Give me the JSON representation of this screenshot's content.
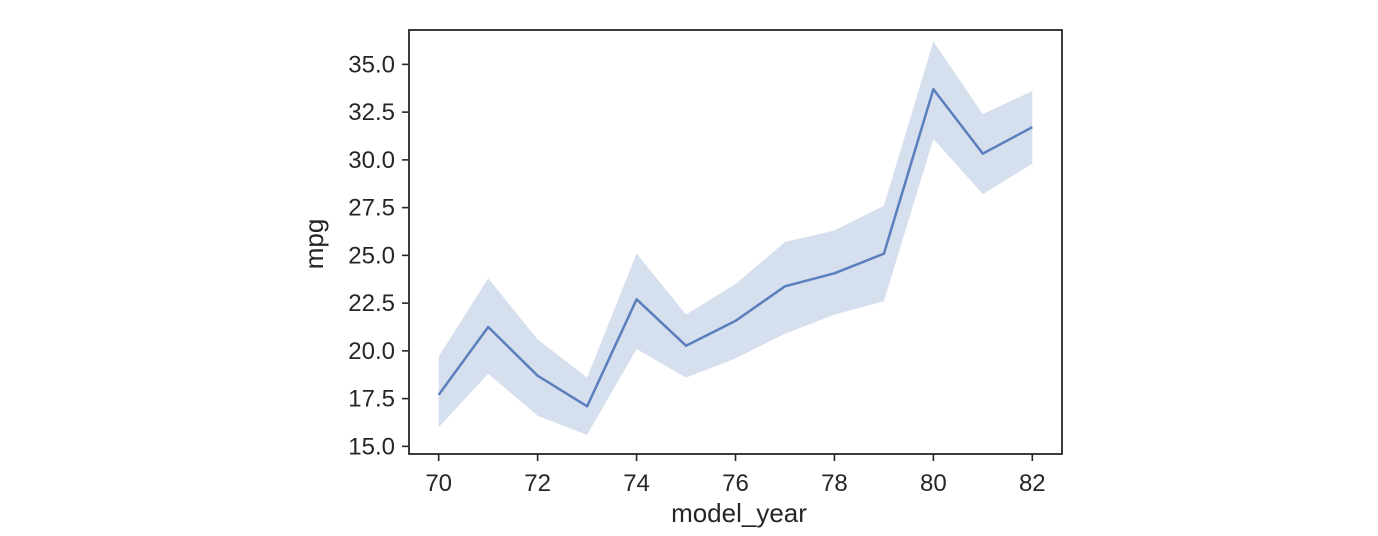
{
  "chart_data": {
    "type": "line",
    "xlabel": "model_year",
    "ylabel": "mpg",
    "xlim": [
      69.4,
      82.6
    ],
    "ylim": [
      14.6,
      36.8
    ],
    "x_ticks": [
      70,
      72,
      74,
      76,
      78,
      80,
      82
    ],
    "y_ticks": [
      "15.0",
      "17.5",
      "20.0",
      "22.5",
      "25.0",
      "27.5",
      "30.0",
      "32.5",
      "35.0"
    ],
    "grid": false,
    "series": [
      {
        "x": [
          70,
          71,
          72,
          73,
          74,
          75,
          76,
          77,
          78,
          79,
          80,
          81,
          82
        ],
        "y": [
          17.7,
          21.25,
          18.7,
          17.1,
          22.7,
          20.27,
          21.57,
          23.38,
          24.06,
          25.09,
          33.7,
          30.33,
          31.71
        ],
        "ci_lower": [
          16.0,
          18.8,
          16.6,
          15.6,
          20.1,
          18.6,
          19.6,
          20.9,
          21.9,
          22.6,
          31.1,
          28.2,
          29.8
        ],
        "ci_upper": [
          19.7,
          23.8,
          20.6,
          18.6,
          25.1,
          21.9,
          23.5,
          25.7,
          26.3,
          27.6,
          36.2,
          32.4,
          33.6
        ]
      }
    ],
    "colors": {
      "line": "#5b7fbc",
      "band": "#d6dfee",
      "axis": "#262626"
    }
  }
}
